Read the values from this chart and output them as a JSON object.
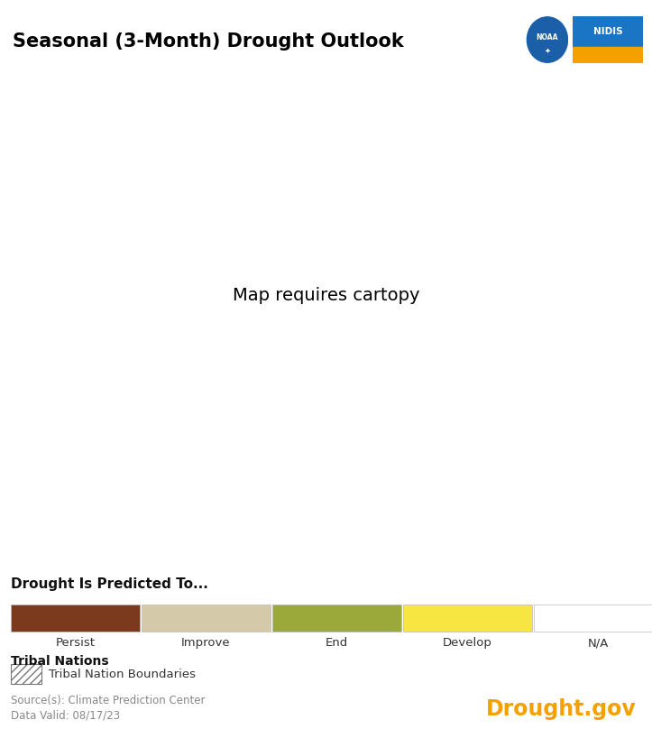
{
  "title": "Seasonal (3-Month) Drought Outlook",
  "title_fontsize": 15,
  "title_fontweight": "bold",
  "background_color": "#ffffff",
  "legend_title": "Drought Is Predicted To...",
  "legend_bar_colors": [
    "#7B3A1E",
    "#D4C9A8",
    "#9BA83A",
    "#F7E642",
    "#FFFFFF"
  ],
  "legend_bar_labels": [
    "Persist",
    "Improve",
    "End",
    "Develop",
    "N/A"
  ],
  "tribal_nations_title": "Tribal Nations",
  "tribal_nations_label": "Tribal Nation Boundaries",
  "source_text": "Source(s): Climate Prediction Center",
  "data_valid_text": "Data Valid: 08/17/23",
  "drought_gov_text": "Drought.gov",
  "drought_gov_color": "#F5A000",
  "persist_color": "#7B3A1E",
  "improve_color": "#D4C9A8",
  "end_color": "#9BA83A",
  "develop_color": "#F7E642",
  "fig_width": 7.23,
  "fig_height": 8.08,
  "dpi": 100,
  "map_extent": [
    -114.5,
    -88.5,
    25.5,
    42.5
  ],
  "noaa_color": "#1a5fa8",
  "nidis_color": "#1a75c4",
  "nidis_bar_color": "#F5A000"
}
